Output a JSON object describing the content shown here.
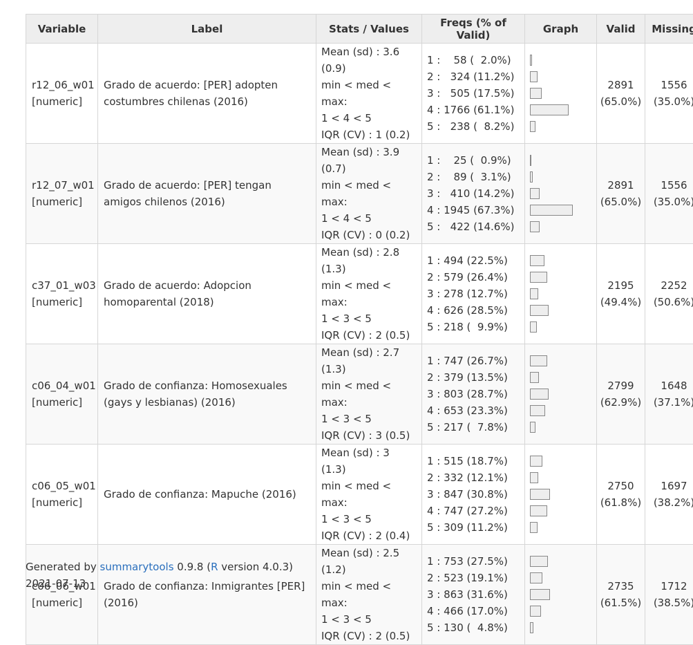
{
  "headers": {
    "variable": "Variable",
    "label": "Label",
    "stats": "Stats / Values",
    "freqs": "Freqs (% of Valid)",
    "graph": "Graph",
    "valid": "Valid",
    "missing": "Missing"
  },
  "rows": [
    {
      "var_name": "r12_06_w01",
      "var_type": "[numeric]",
      "label": "Grado de acuerdo: [PER] adopten costumbres chilenas (2016)",
      "stats": [
        "Mean (sd) : 3.6 (0.9)",
        "min < med < max:",
        "1 < 4 < 5",
        "IQR (CV) : 1 (0.2)"
      ],
      "freqs": [
        "1 :    58 (  2.0%)",
        "2 :   324 (11.2%)",
        "3 :   505 (17.5%)",
        "4 : 1766 (61.1%)",
        "5 :   238 (  8.2%)"
      ],
      "pcts": [
        2.0,
        11.2,
        17.5,
        61.1,
        8.2
      ],
      "valid_n": "2891",
      "valid_pct": "(65.0%)",
      "missing_n": "1556",
      "missing_pct": "(35.0%)"
    },
    {
      "var_name": "r12_07_w01",
      "var_type": "[numeric]",
      "label": "Grado de acuerdo: [PER] tengan amigos chilenos (2016)",
      "stats": [
        "Mean (sd) : 3.9 (0.7)",
        "min < med < max:",
        "1 < 4 < 5",
        "IQR (CV) : 0 (0.2)"
      ],
      "freqs": [
        "1 :    25 (  0.9%)",
        "2 :    89 (  3.1%)",
        "3 :   410 (14.2%)",
        "4 : 1945 (67.3%)",
        "5 :   422 (14.6%)"
      ],
      "pcts": [
        0.9,
        3.1,
        14.2,
        67.3,
        14.6
      ],
      "valid_n": "2891",
      "valid_pct": "(65.0%)",
      "missing_n": "1556",
      "missing_pct": "(35.0%)"
    },
    {
      "var_name": "c37_01_w03",
      "var_type": "[numeric]",
      "label": "Grado de acuerdo: Adopcion homoparental (2018)",
      "stats": [
        "Mean (sd) : 2.8 (1.3)",
        "min < med < max:",
        "1 < 3 < 5",
        "IQR (CV) : 2 (0.5)"
      ],
      "freqs": [
        "1 : 494 (22.5%)",
        "2 : 579 (26.4%)",
        "3 : 278 (12.7%)",
        "4 : 626 (28.5%)",
        "5 : 218 (  9.9%)"
      ],
      "pcts": [
        22.5,
        26.4,
        12.7,
        28.5,
        9.9
      ],
      "valid_n": "2195",
      "valid_pct": "(49.4%)",
      "missing_n": "2252",
      "missing_pct": "(50.6%)"
    },
    {
      "var_name": "c06_04_w01",
      "var_type": "[numeric]",
      "label": "Grado de confianza: Homosexuales (gays y lesbianas) (2016)",
      "stats": [
        "Mean (sd) : 2.7 (1.3)",
        "min < med < max:",
        "1 < 3 < 5",
        "IQR (CV) : 3 (0.5)"
      ],
      "freqs": [
        "1 : 747 (26.7%)",
        "2 : 379 (13.5%)",
        "3 : 803 (28.7%)",
        "4 : 653 (23.3%)",
        "5 : 217 (  7.8%)"
      ],
      "pcts": [
        26.7,
        13.5,
        28.7,
        23.3,
        7.8
      ],
      "valid_n": "2799",
      "valid_pct": "(62.9%)",
      "missing_n": "1648",
      "missing_pct": "(37.1%)"
    },
    {
      "var_name": "c06_05_w01",
      "var_type": "[numeric]",
      "label": "Grado de confianza: Mapuche (2016)",
      "stats": [
        "Mean (sd) : 3 (1.3)",
        "min < med < max:",
        "1 < 3 < 5",
        "IQR (CV) : 2 (0.4)"
      ],
      "freqs": [
        "1 : 515 (18.7%)",
        "2 : 332 (12.1%)",
        "3 : 847 (30.8%)",
        "4 : 747 (27.2%)",
        "5 : 309 (11.2%)"
      ],
      "pcts": [
        18.7,
        12.1,
        30.8,
        27.2,
        11.2
      ],
      "valid_n": "2750",
      "valid_pct": "(61.8%)",
      "missing_n": "1697",
      "missing_pct": "(38.2%)"
    },
    {
      "var_name": "c06_06_w01",
      "var_type": "[numeric]",
      "label": "Grado de confianza: Inmigrantes [PER] (2016)",
      "stats": [
        "Mean (sd) : 2.5 (1.2)",
        "min < med < max:",
        "1 < 3 < 5",
        "IQR (CV) : 2 (0.5)"
      ],
      "freqs": [
        "1 : 753 (27.5%)",
        "2 : 523 (19.1%)",
        "3 : 863 (31.6%)",
        "4 : 466 (17.0%)",
        "5 : 130 (  4.8%)"
      ],
      "pcts": [
        27.5,
        19.1,
        31.6,
        17.0,
        4.8
      ],
      "valid_n": "2735",
      "valid_pct": "(61.5%)",
      "missing_n": "1712",
      "missing_pct": "(38.5%)"
    }
  ],
  "footer": {
    "generated_by": "Generated by ",
    "pkg_link": "summarytools",
    "pkg_version": " 0.9.8 (",
    "r_link": "R",
    "r_version": " version 4.0.3)",
    "date": "2021-07-13"
  },
  "colors": {
    "header_bg": "#eeeeee",
    "border": "#d6d6d6",
    "bar_fill": "#eeeeee",
    "bar_border": "#888888",
    "link": "#2a6fbd"
  }
}
